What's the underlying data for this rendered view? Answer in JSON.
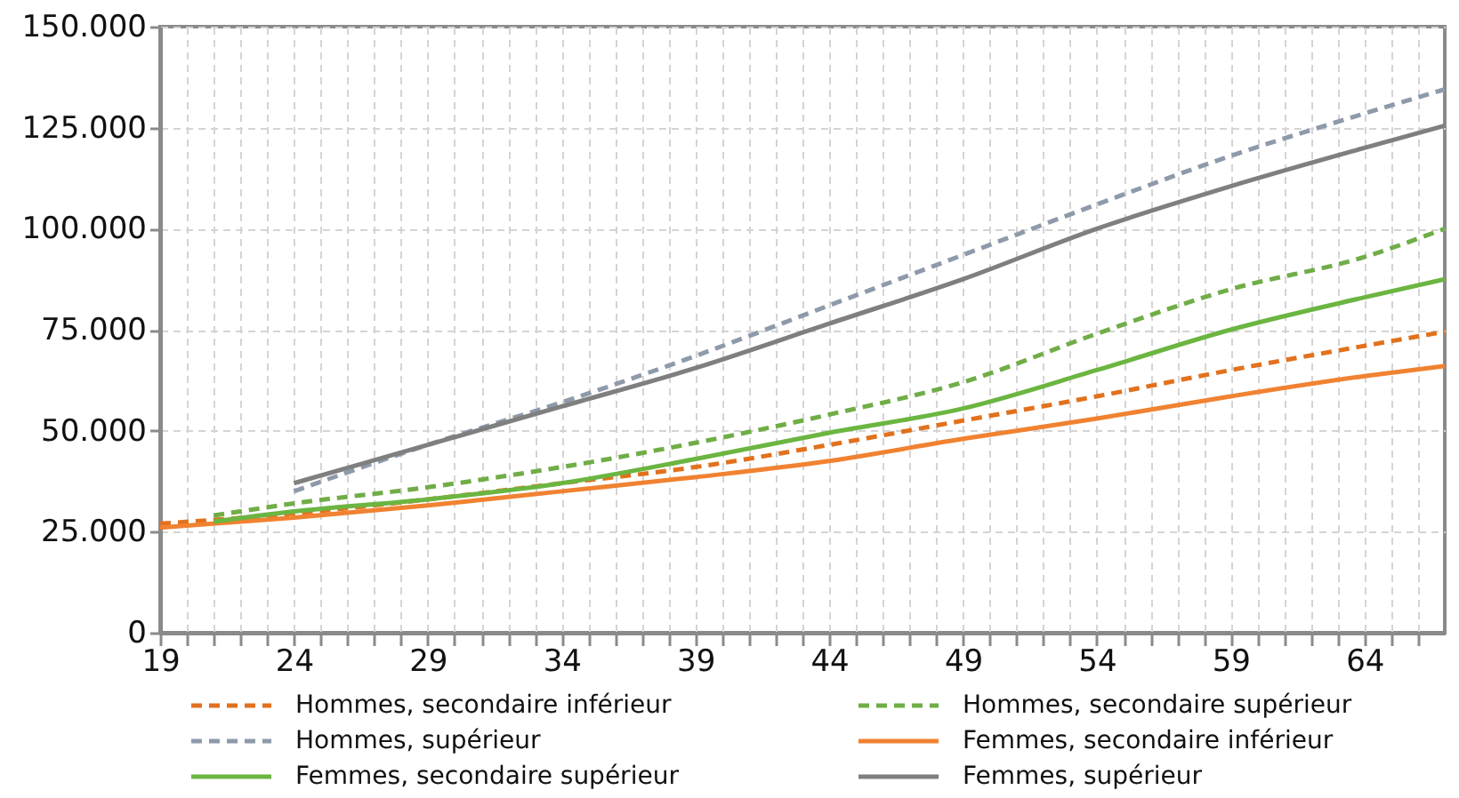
{
  "chart_data": {
    "type": "line",
    "grid": true,
    "legend": "bottom",
    "xlim": [
      19,
      67
    ],
    "xticks": [
      19,
      {
        "value": 20,
        "label": null
      },
      {
        "value": 21,
        "label": null
      },
      {
        "value": 22,
        "label": null
      },
      {
        "value": 23,
        "label": null
      },
      24,
      {
        "value": 25,
        "label": null
      },
      {
        "value": 26,
        "label": null
      },
      {
        "value": 27,
        "label": null
      },
      {
        "value": 28,
        "label": null
      },
      29,
      {
        "value": 30,
        "label": null
      },
      {
        "value": 31,
        "label": null
      },
      {
        "value": 32,
        "label": null
      },
      {
        "value": 33,
        "label": null
      },
      34,
      {
        "value": 35,
        "label": null
      },
      {
        "value": 36,
        "label": null
      },
      {
        "value": 37,
        "label": null
      },
      {
        "value": 38,
        "label": null
      },
      39,
      {
        "value": 40,
        "label": null
      },
      {
        "value": 41,
        "label": null
      },
      {
        "value": 42,
        "label": null
      },
      {
        "value": 43,
        "label": null
      },
      44,
      {
        "value": 45,
        "label": null
      },
      {
        "value": 46,
        "label": null
      },
      {
        "value": 47,
        "label": null
      },
      {
        "value": 48,
        "label": null
      },
      49,
      {
        "value": 50,
        "label": null
      },
      {
        "value": 51,
        "label": null
      },
      {
        "value": 52,
        "label": null
      },
      {
        "value": 53,
        "label": null
      },
      54,
      {
        "value": 55,
        "label": null
      },
      {
        "value": 56,
        "label": null
      },
      {
        "value": 57,
        "label": null
      },
      {
        "value": 58,
        "label": null
      },
      59,
      {
        "value": 60,
        "label": null
      },
      {
        "value": 61,
        "label": null
      },
      {
        "value": 62,
        "label": null
      },
      {
        "value": 63,
        "label": null
      },
      64,
      {
        "value": 65,
        "label": null
      },
      {
        "value": 66,
        "label": null
      }
    ],
    "ylim": [
      0,
      150000
    ],
    "yticks": [
      0,
      {
        "value": 25000,
        "label": "25.000"
      },
      {
        "value": 50000,
        "label": "50.000"
      },
      {
        "value": 75000,
        "label": "75.000"
      },
      {
        "value": 100000,
        "label": "100.000"
      },
      {
        "value": 125000,
        "label": "125.000"
      },
      {
        "value": 150000,
        "label": "150.000"
      }
    ],
    "series": [
      {
        "name": "Hommes, secondaire inférieur",
        "color": "#e2711d",
        "line_style": "dashed",
        "x": [
          19,
          24,
          29,
          34,
          39,
          44,
          49,
          54,
          59,
          64,
          67
        ],
        "values": [
          27000,
          29500,
          33000,
          37000,
          41000,
          46500,
          52500,
          58500,
          65000,
          71000,
          74500
        ]
      },
      {
        "name": "Hommes, secondaire supérieur",
        "color": "#70ad47",
        "line_style": "dashed",
        "x": [
          21,
          24,
          29,
          34,
          39,
          44,
          49,
          54,
          59,
          64,
          67
        ],
        "values": [
          29000,
          32000,
          36000,
          41000,
          47000,
          54000,
          62000,
          74000,
          85000,
          93000,
          100000
        ]
      },
      {
        "name": "Hommes, supérieur",
        "color": "#8e9aaa",
        "line_style": "dashed",
        "x": [
          24,
          29,
          34,
          39,
          44,
          49,
          54,
          59,
          64,
          67
        ],
        "values": [
          35000,
          46500,
          57000,
          68500,
          81000,
          93500,
          106000,
          118000,
          128500,
          134500
        ]
      },
      {
        "name": "Femmes, secondaire inférieur",
        "color": "#f08231",
        "line_style": "solid",
        "x": [
          19,
          24,
          29,
          34,
          39,
          44,
          49,
          54,
          59,
          64,
          67
        ],
        "values": [
          26000,
          28500,
          31500,
          35000,
          38500,
          42500,
          48000,
          53000,
          58500,
          63500,
          66000
        ]
      },
      {
        "name": "Femmes, secondaire supérieur",
        "color": "#6bb541",
        "line_style": "solid",
        "x": [
          21,
          24,
          29,
          34,
          39,
          44,
          49,
          54,
          59,
          64,
          67
        ],
        "values": [
          27500,
          30000,
          33000,
          37000,
          43000,
          49500,
          55500,
          65000,
          75000,
          83000,
          87500
        ]
      },
      {
        "name": "Femmes, supérieur",
        "color": "#7f7f7f",
        "line_style": "solid",
        "x": [
          24,
          29,
          34,
          39,
          44,
          49,
          54,
          59,
          64,
          67
        ],
        "values": [
          37000,
          46500,
          56000,
          65500,
          76500,
          87500,
          100000,
          110500,
          120000,
          125500
        ]
      }
    ]
  }
}
